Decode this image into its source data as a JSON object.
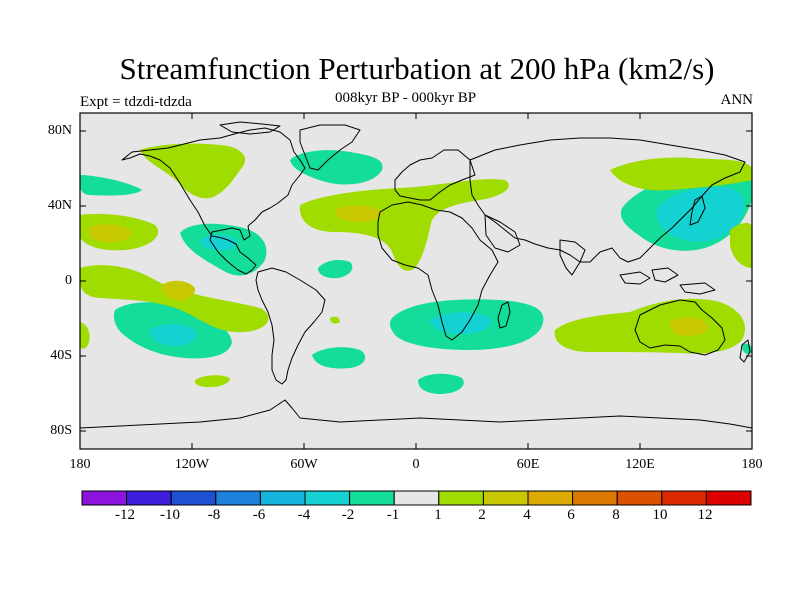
{
  "title": "Streamfunction Perturbation at 200 hPa (km2/s)",
  "subtitle": "008kyr BP - 000kyr BP",
  "left_label": "Expt = tdzdi-tdzda",
  "right_label": "ANN",
  "map": {
    "projection": "cylindrical-equidistant",
    "lat_labels": [
      "80N",
      "40N",
      "0",
      "40S",
      "80S"
    ],
    "lon_labels": [
      "180",
      "120W",
      "60W",
      "0",
      "60E",
      "120E",
      "180"
    ],
    "background_color": "#e6e6e6",
    "coastline_color": "#000000"
  },
  "colorbar": {
    "labels": [
      "-12",
      "-10",
      "-8",
      "-6",
      "-4",
      "-2",
      "-1",
      "1",
      "2",
      "4",
      "6",
      "8",
      "10",
      "12"
    ],
    "colors": [
      "#8c14dc",
      "#3c1edc",
      "#1e50d2",
      "#1e82dc",
      "#14b4dc",
      "#14d2d2",
      "#14dc9b",
      "#e6e6e6",
      "#a0dc00",
      "#c8c800",
      "#dcaa00",
      "#dc7800",
      "#dc5000",
      "#dc2800",
      "#dc0000"
    ]
  }
}
